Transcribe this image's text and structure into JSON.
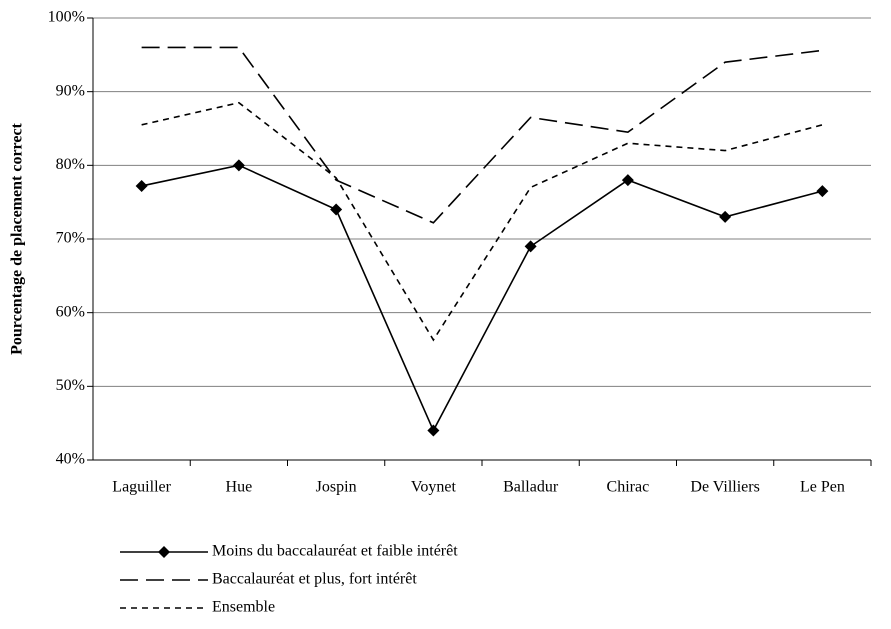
{
  "chart_data": {
    "type": "line",
    "y_label": "Pourcentage de placement correct",
    "categories": [
      "Laguiller",
      "Hue",
      "Jospin",
      "Voynet",
      "Balladur",
      "Chirac",
      "De Villiers",
      "Le Pen"
    ],
    "series": [
      {
        "name": "Moins du baccalauréat et faible intérêt",
        "color": "#000000",
        "dash": "solid",
        "marker": "diamond",
        "values": [
          77.2,
          80,
          74,
          44,
          69,
          78,
          73,
          76.5
        ]
      },
      {
        "name": "Baccalauréat et plus, fort intérêt",
        "color": "#000000",
        "dash": "dashed",
        "marker": "none",
        "values": [
          96,
          96,
          78,
          72.2,
          86.5,
          84.5,
          94,
          95.6
        ]
      },
      {
        "name": "Ensemble",
        "color": "#000000",
        "dash": "dotted",
        "marker": "none",
        "values": [
          85.5,
          88.5,
          78.3,
          56.3,
          77,
          83,
          82,
          85.5
        ]
      }
    ],
    "ylim": [
      40,
      100
    ],
    "yticks": [
      {
        "value": 40,
        "label": "40%"
      },
      {
        "value": 50,
        "label": "50%"
      },
      {
        "value": 60,
        "label": "60%"
      },
      {
        "value": 70,
        "label": "70%"
      },
      {
        "value": 80,
        "label": "80%"
      },
      {
        "value": 90,
        "label": "90%"
      },
      {
        "value": 100,
        "label": "100%"
      }
    ],
    "grid": true,
    "legend": "bottom"
  }
}
